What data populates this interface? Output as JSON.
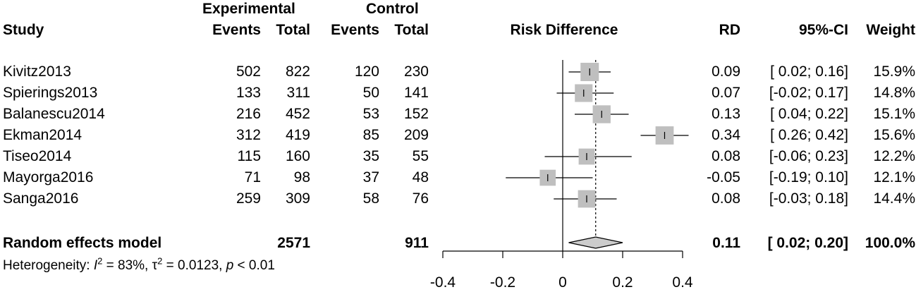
{
  "header": {
    "group_exp": "Experimental",
    "group_ctrl": "Control",
    "study": "Study",
    "events": "Events",
    "total": "Total",
    "events2": "Events",
    "total2": "Total",
    "measure": "Risk Difference",
    "rd": "RD",
    "ci": "95%-CI",
    "weight": "Weight"
  },
  "studies": [
    {
      "name": "Kivitz2013",
      "ee": "502",
      "et": "822",
      "ce": "120",
      "ct": "230",
      "rd": "0.09",
      "ci": "[ 0.02; 0.16]",
      "w": "15.9%"
    },
    {
      "name": "Spierings2013",
      "ee": "133",
      "et": "311",
      "ce": "50",
      "ct": "141",
      "rd": "0.07",
      "ci": "[-0.02; 0.17]",
      "w": "14.8%"
    },
    {
      "name": "Balanescu2014",
      "ee": "216",
      "et": "452",
      "ce": "53",
      "ct": "152",
      "rd": "0.13",
      "ci": "[ 0.04; 0.22]",
      "w": "15.1%"
    },
    {
      "name": "Ekman2014",
      "ee": "312",
      "et": "419",
      "ce": "85",
      "ct": "209",
      "rd": "0.34",
      "ci": "[ 0.26; 0.42]",
      "w": "15.6%"
    },
    {
      "name": "Tiseo2014",
      "ee": "115",
      "et": "160",
      "ce": "35",
      "ct": "55",
      "rd": "0.08",
      "ci": "[-0.06; 0.23]",
      "w": "12.2%"
    },
    {
      "name": "Mayorga2016",
      "ee": "71",
      "et": "98",
      "ce": "37",
      "ct": "48",
      "rd": "-0.05",
      "ci": "[-0.19; 0.10]",
      "w": "12.1%"
    },
    {
      "name": "Sanga2016",
      "ee": "259",
      "et": "309",
      "ce": "58",
      "ct": "76",
      "rd": "0.08",
      "ci": "[-0.03; 0.18]",
      "w": "14.4%"
    }
  ],
  "pooled": {
    "name": "Random effects model",
    "et": "2571",
    "ct": "911",
    "rd": "0.11",
    "ci": "[ 0.02; 0.20]",
    "w": "100.0%"
  },
  "heterogeneity": {
    "label": "Heterogeneity: ",
    "i": "I",
    "i_exp": "2",
    "i_val": " = 83%, ",
    "tau": "τ",
    "tau_exp": "2",
    "tau_val": " = 0.0123, ",
    "p": "p",
    "p_val": " < 0.01"
  },
  "chart_data": {
    "type": "forest",
    "title": "",
    "xlabel": "Risk Difference",
    "xlim": [
      -0.4,
      0.4
    ],
    "ticks": [
      -0.4,
      -0.2,
      0,
      0.2,
      0.4
    ],
    "tick_labels": [
      "-0.4",
      "-0.2",
      "0",
      "0.2",
      "0.4"
    ],
    "null_line": 0,
    "pooled_line": 0.11,
    "studies": [
      {
        "name": "Kivitz2013",
        "est": 0.09,
        "lo": 0.02,
        "hi": 0.16,
        "weight": 15.9
      },
      {
        "name": "Spierings2013",
        "est": 0.07,
        "lo": -0.02,
        "hi": 0.17,
        "weight": 14.8
      },
      {
        "name": "Balanescu2014",
        "est": 0.13,
        "lo": 0.04,
        "hi": 0.22,
        "weight": 15.1
      },
      {
        "name": "Ekman2014",
        "est": 0.34,
        "lo": 0.26,
        "hi": 0.42,
        "weight": 15.6
      },
      {
        "name": "Tiseo2014",
        "est": 0.08,
        "lo": -0.06,
        "hi": 0.23,
        "weight": 12.2
      },
      {
        "name": "Mayorga2016",
        "est": -0.05,
        "lo": -0.19,
        "hi": 0.1,
        "weight": 12.1
      },
      {
        "name": "Sanga2016",
        "est": 0.08,
        "lo": -0.03,
        "hi": 0.18,
        "weight": 14.4
      }
    ],
    "pooled": {
      "est": 0.11,
      "lo": 0.02,
      "hi": 0.2
    },
    "colors": {
      "box": "#bfbfbf",
      "diamond": "#cccccc",
      "line": "#000000"
    }
  }
}
